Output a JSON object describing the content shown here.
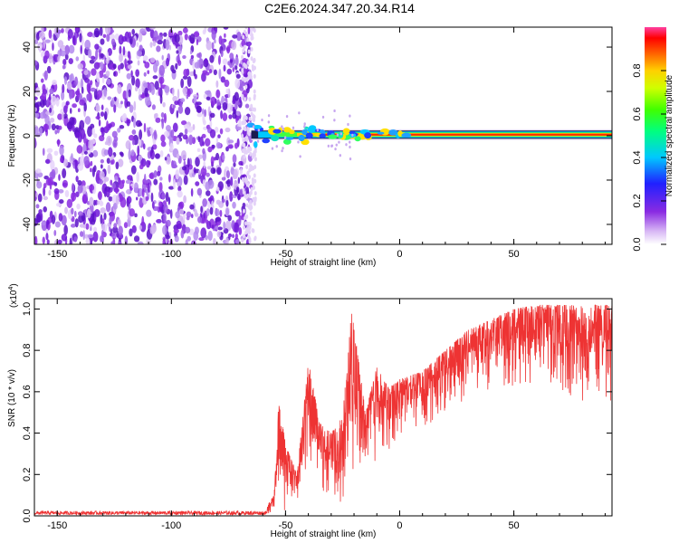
{
  "title": "C2E6.2024.347.20.34.R14",
  "chart_data": [
    {
      "type": "heatmap",
      "xlabel": "Height of straight line (km)",
      "ylabel": "Frequency (Hz)",
      "xlim": [
        -160,
        93
      ],
      "ylim": [
        -49,
        49
      ],
      "x_ticks": [
        -150,
        -100,
        -50,
        0,
        50
      ],
      "y_ticks": [
        -40,
        -20,
        0,
        20,
        40
      ],
      "noise_region": {
        "x_range": [
          -160,
          -65
        ],
        "y_range": [
          -49,
          49
        ],
        "level": 0.1
      },
      "signal_line": {
        "frequency": 0.5,
        "x_range": [
          -65,
          93
        ],
        "peak_level": 0.95
      },
      "colorbar": {
        "label": "Normalized spectral amplitude",
        "range": [
          0.0,
          1.0
        ],
        "ticks": [
          0.0,
          0.2,
          0.4,
          0.6,
          0.8
        ],
        "tick_labels": [
          "0.0",
          "0.2",
          "0.4",
          "0.6",
          "0.8"
        ]
      }
    },
    {
      "type": "line",
      "xlabel": "Height of straight line (km)",
      "ylabel": "SNR (10 * v/v)",
      "scale_label": "(x10",
      "scale_exponent": "4",
      "scale_close": ")",
      "xlim": [
        -160,
        93
      ],
      "ylim": [
        0,
        1.05
      ],
      "x_ticks": [
        -150,
        -100,
        -50,
        0,
        50
      ],
      "y_ticks": [
        0.0,
        0.2,
        0.4,
        0.6,
        0.8,
        1.0
      ],
      "y_tick_labels": [
        "0.0",
        "0.2",
        "0.4",
        "0.6",
        "0.8",
        "1.0"
      ],
      "color": "#ee3333",
      "envelope": [
        {
          "x": -160,
          "lo": 0.0,
          "hi": 0.02
        },
        {
          "x": -60,
          "lo": 0.0,
          "hi": 0.02
        },
        {
          "x": -55,
          "lo": 0.02,
          "hi": 0.1
        },
        {
          "x": -53,
          "lo": 0.05,
          "hi": 0.55
        },
        {
          "x": -50,
          "lo": 0.02,
          "hi": 0.35
        },
        {
          "x": -45,
          "lo": 0.05,
          "hi": 0.2
        },
        {
          "x": -40,
          "lo": 0.15,
          "hi": 0.75
        },
        {
          "x": -35,
          "lo": 0.1,
          "hi": 0.45
        },
        {
          "x": -30,
          "lo": 0.1,
          "hi": 0.4
        },
        {
          "x": -25,
          "lo": 0.05,
          "hi": 0.48
        },
        {
          "x": -21,
          "lo": 0.1,
          "hi": 1.0
        },
        {
          "x": -15,
          "lo": 0.2,
          "hi": 0.5
        },
        {
          "x": -10,
          "lo": 0.25,
          "hi": 0.72
        },
        {
          "x": -5,
          "lo": 0.3,
          "hi": 0.62
        },
        {
          "x": 0,
          "lo": 0.38,
          "hi": 0.66
        },
        {
          "x": 10,
          "lo": 0.42,
          "hi": 0.7
        },
        {
          "x": 20,
          "lo": 0.5,
          "hi": 0.8
        },
        {
          "x": 30,
          "lo": 0.55,
          "hi": 0.9
        },
        {
          "x": 40,
          "lo": 0.6,
          "hi": 0.95
        },
        {
          "x": 50,
          "lo": 0.62,
          "hi": 1.0
        },
        {
          "x": 60,
          "lo": 0.6,
          "hi": 1.02
        },
        {
          "x": 70,
          "lo": 0.58,
          "hi": 1.02
        },
        {
          "x": 80,
          "lo": 0.55,
          "hi": 1.02
        },
        {
          "x": 93,
          "lo": 0.5,
          "hi": 1.02
        }
      ]
    }
  ]
}
